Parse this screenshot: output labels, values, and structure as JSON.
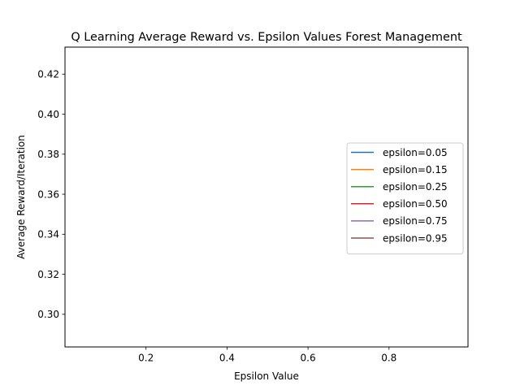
{
  "chart_data": {
    "type": "line",
    "title": "Q Learning Average Reward vs. Epsilon Values Forest Management",
    "xlabel": "Epsilon Value",
    "ylabel": "Average Reward/Iteration",
    "xlim": [
      0.0,
      0.995
    ],
    "ylim": [
      0.2837,
      0.4335
    ],
    "xticks": [
      0.2,
      0.4,
      0.6,
      0.8
    ],
    "xtick_labels": [
      "0.2",
      "0.4",
      "0.6",
      "0.8"
    ],
    "yticks": [
      0.3,
      0.32,
      0.34,
      0.36,
      0.38,
      0.4,
      0.42
    ],
    "ytick_labels": [
      "0.30",
      "0.32",
      "0.34",
      "0.36",
      "0.38",
      "0.40",
      "0.42"
    ],
    "grid": false,
    "legend_position": "center-right",
    "series": [
      {
        "name": "epsilon=0.05",
        "color": "#1f77b4",
        "x": [],
        "values": []
      },
      {
        "name": "epsilon=0.15",
        "color": "#ff7f0e",
        "x": [],
        "values": []
      },
      {
        "name": "epsilon=0.25",
        "color": "#2ca02c",
        "x": [],
        "values": []
      },
      {
        "name": "epsilon=0.50",
        "color": "#d62728",
        "x": [],
        "values": []
      },
      {
        "name": "epsilon=0.75",
        "color": "#9467bd",
        "x": [],
        "values": []
      },
      {
        "name": "epsilon=0.95",
        "color": "#8c564b",
        "x": [],
        "values": []
      }
    ]
  }
}
